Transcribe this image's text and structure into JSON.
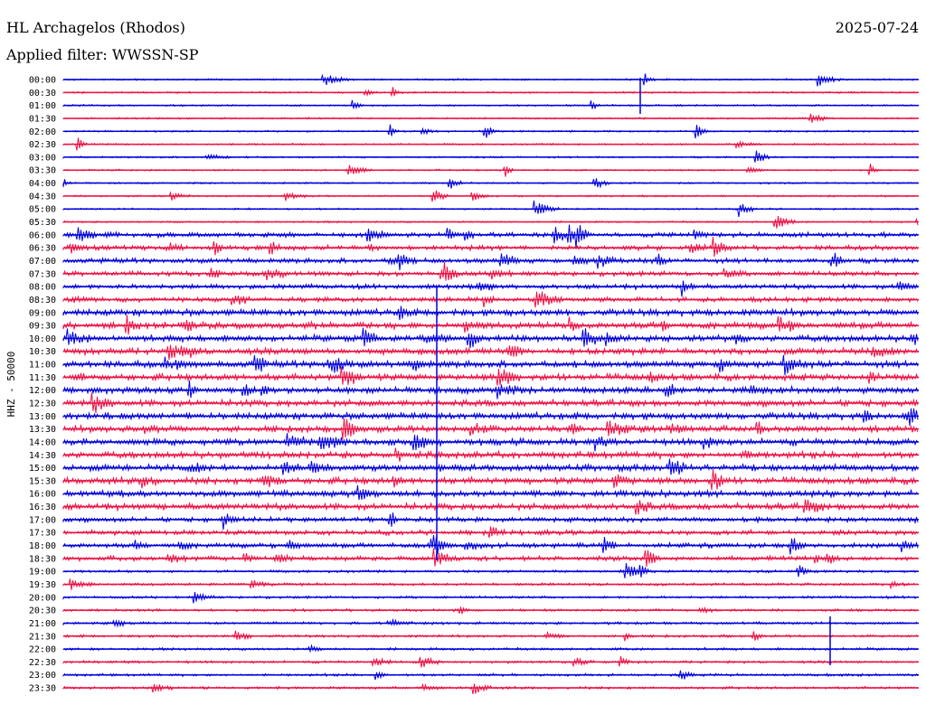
{
  "header": {
    "station": "HL Archagelos (Rhodos)",
    "date": "2025-07-24",
    "filter_label": "Applied filter: WWSSN-SP"
  },
  "chart_data": {
    "type": "line",
    "title": "HL Archagelos (Rhodos)",
    "ylabel": "HHZ - 50000",
    "row_labels": [
      "00:00",
      "00:30",
      "01:00",
      "01:30",
      "02:00",
      "02:30",
      "03:00",
      "03:30",
      "04:00",
      "04:30",
      "05:00",
      "05:30",
      "06:00",
      "06:30",
      "07:00",
      "07:30",
      "08:00",
      "08:30",
      "09:00",
      "09:30",
      "10:00",
      "10:30",
      "11:00",
      "11:30",
      "12:00",
      "12:30",
      "13:00",
      "13:30",
      "14:00",
      "14:30",
      "15:00",
      "15:30",
      "16:00",
      "16:30",
      "17:00",
      "17:30",
      "18:00",
      "18:30",
      "19:00",
      "19:30",
      "20:00",
      "20:30",
      "21:00",
      "21:30",
      "22:00",
      "22:30",
      "23:00",
      "23:30"
    ],
    "series_colors": [
      "#0000dd",
      "#ee1144"
    ],
    "grid": false
  }
}
